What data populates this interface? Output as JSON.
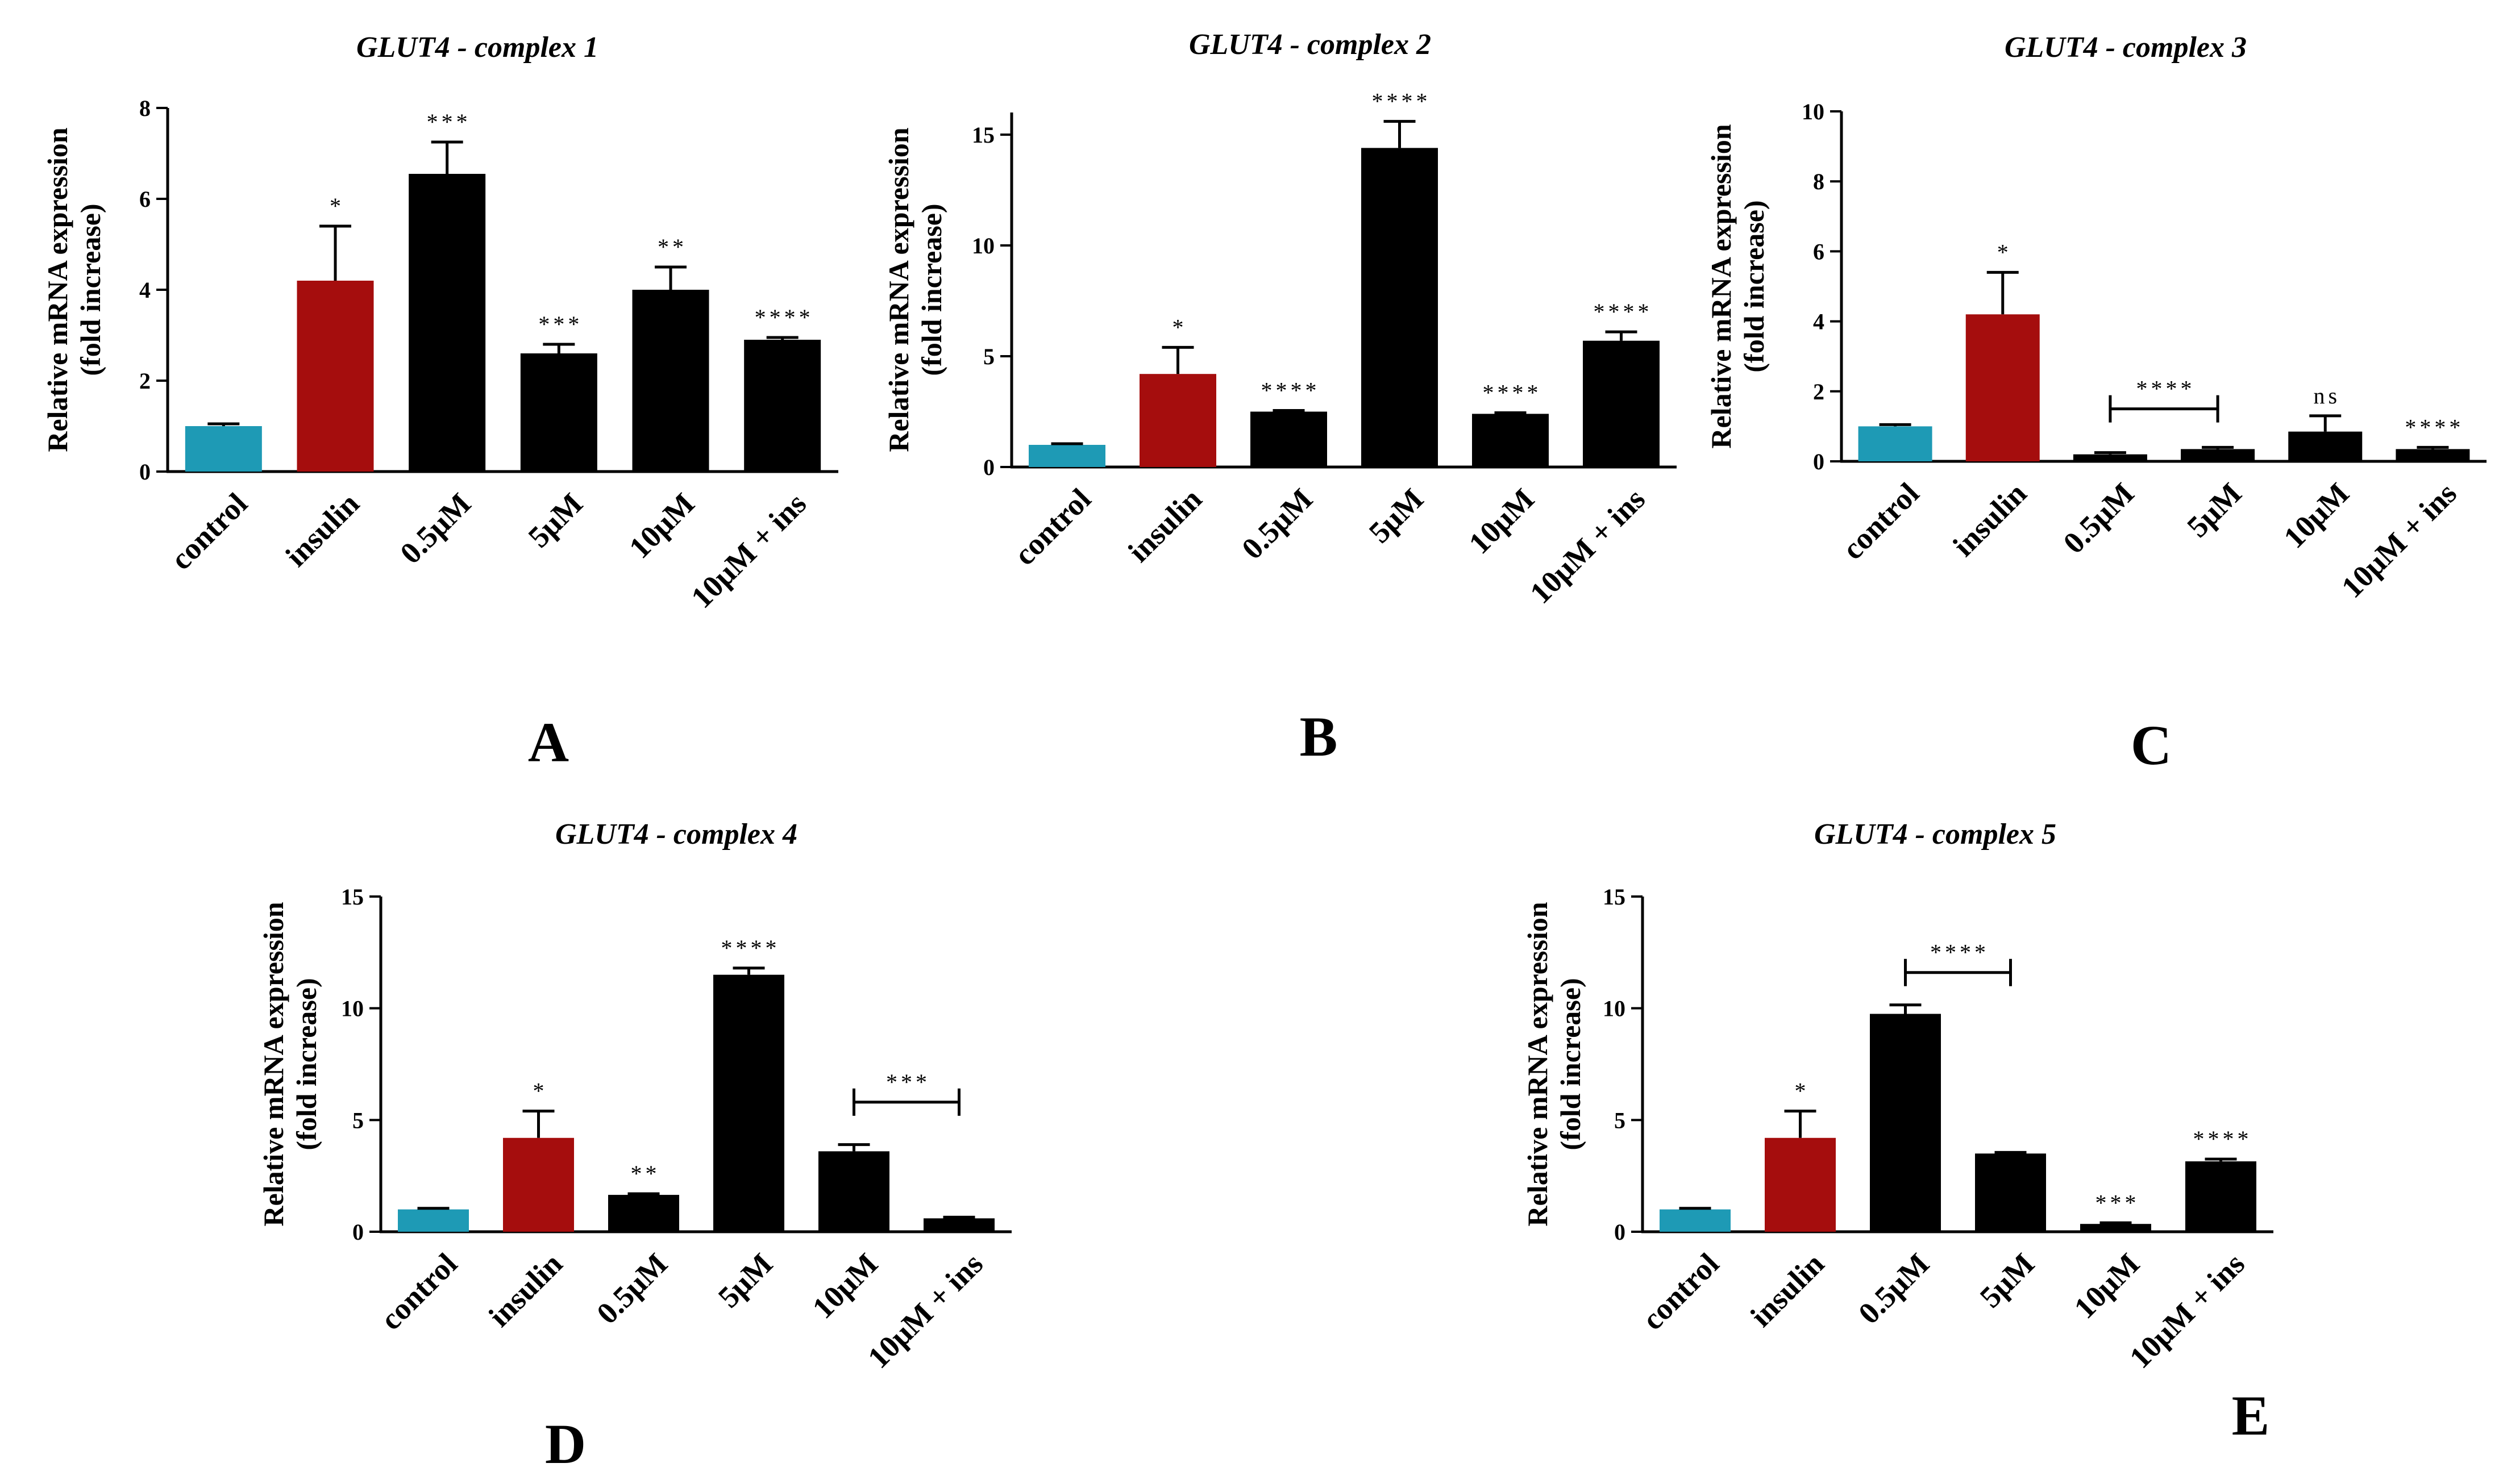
{
  "figure": {
    "series_colors": {
      "control": "#1e9ab5",
      "insulin": "#a50d0d",
      "treatment": "#000000"
    }
  },
  "chart_data": [
    {
      "type": "bar",
      "panel": "A",
      "title": "GLUT4 - complex 1",
      "ylabel_line1": "Relative mRNA expression",
      "ylabel_line2": "(fold increase)",
      "xlabel": "",
      "ylim": [
        0,
        8
      ],
      "yticks": [
        0,
        2,
        4,
        6,
        8
      ],
      "categories": [
        "control",
        "insulin",
        "0.5μM",
        "5μM",
        "10μM",
        "10μM + ins"
      ],
      "values": [
        1.0,
        4.2,
        6.55,
        2.6,
        4.0,
        2.9
      ],
      "errors": [
        0.05,
        1.2,
        0.7,
        0.2,
        0.5,
        0.05
      ],
      "significance": [
        "",
        "*",
        "***",
        "***",
        "**",
        "****"
      ],
      "brackets": []
    },
    {
      "type": "bar",
      "panel": "B",
      "title": "GLUT4 - complex 2",
      "ylabel_line1": "Relative mRNA expression",
      "ylabel_line2": "(fold increase)",
      "xlabel": "",
      "ylim": [
        0,
        16
      ],
      "yticks": [
        0,
        5,
        10,
        15
      ],
      "categories": [
        "control",
        "insulin",
        "0.5μM",
        "5μM",
        "10μM",
        "10μM + ins"
      ],
      "values": [
        1.0,
        4.2,
        2.5,
        14.4,
        2.4,
        5.7
      ],
      "errors": [
        0.05,
        1.2,
        0.05,
        1.2,
        0.05,
        0.4
      ],
      "significance": [
        "",
        "*",
        "****",
        "****",
        "****",
        "****"
      ],
      "brackets": []
    },
    {
      "type": "bar",
      "panel": "C",
      "title": "GLUT4 - complex 3",
      "ylabel_line1": "Relative mRNA expression",
      "ylabel_line2": "(fold increase)",
      "xlabel": "",
      "ylim": [
        0,
        10
      ],
      "yticks": [
        0,
        2,
        4,
        6,
        8,
        10
      ],
      "categories": [
        "control",
        "insulin",
        "0.5μM",
        "5μM",
        "10μM",
        "10μM + ins"
      ],
      "values": [
        1.0,
        4.2,
        0.2,
        0.35,
        0.85,
        0.35
      ],
      "errors": [
        0.05,
        1.2,
        0.05,
        0.05,
        0.45,
        0.05
      ],
      "significance": [
        "",
        "*",
        "",
        "",
        "ns",
        "****"
      ],
      "brackets": [
        {
          "from": 2,
          "to": 3,
          "y": 1.5,
          "label": "****"
        }
      ]
    },
    {
      "type": "bar",
      "panel": "D",
      "title": "GLUT4 - complex 4",
      "ylabel_line1": "Relative mRNA expression",
      "ylabel_line2": "(fold increase)",
      "xlabel": "",
      "ylim": [
        0,
        15
      ],
      "yticks": [
        0,
        5,
        10,
        15
      ],
      "categories": [
        "control",
        "insulin",
        "0.5μM",
        "5μM",
        "10μM",
        "10μM + ins"
      ],
      "values": [
        1.0,
        4.2,
        1.65,
        11.5,
        3.6,
        0.6
      ],
      "errors": [
        0.05,
        1.2,
        0.05,
        0.3,
        0.3,
        0.05
      ],
      "significance": [
        "",
        "*",
        "**",
        "****",
        "",
        ""
      ],
      "brackets": [
        {
          "from": 4,
          "to": 5,
          "y": 5.8,
          "label": "***"
        }
      ]
    },
    {
      "type": "bar",
      "panel": "E",
      "title": "GLUT4 - complex 5",
      "ylabel_line1": "Relative mRNA expression",
      "ylabel_line2": "(fold increase)",
      "xlabel": "",
      "ylim": [
        0,
        15
      ],
      "yticks": [
        0,
        5,
        10,
        15
      ],
      "categories": [
        "control",
        "insulin",
        "0.5μM",
        "5μM",
        "10μM",
        "10μM + ins"
      ],
      "values": [
        1.0,
        4.2,
        9.75,
        3.5,
        0.35,
        3.15
      ],
      "errors": [
        0.05,
        1.2,
        0.4,
        0.05,
        0.05,
        0.1
      ],
      "significance": [
        "",
        "*",
        "",
        "",
        "***",
        "****"
      ],
      "brackets": [
        {
          "from": 2,
          "to": 3,
          "y": 11.6,
          "label": "****"
        }
      ]
    }
  ]
}
